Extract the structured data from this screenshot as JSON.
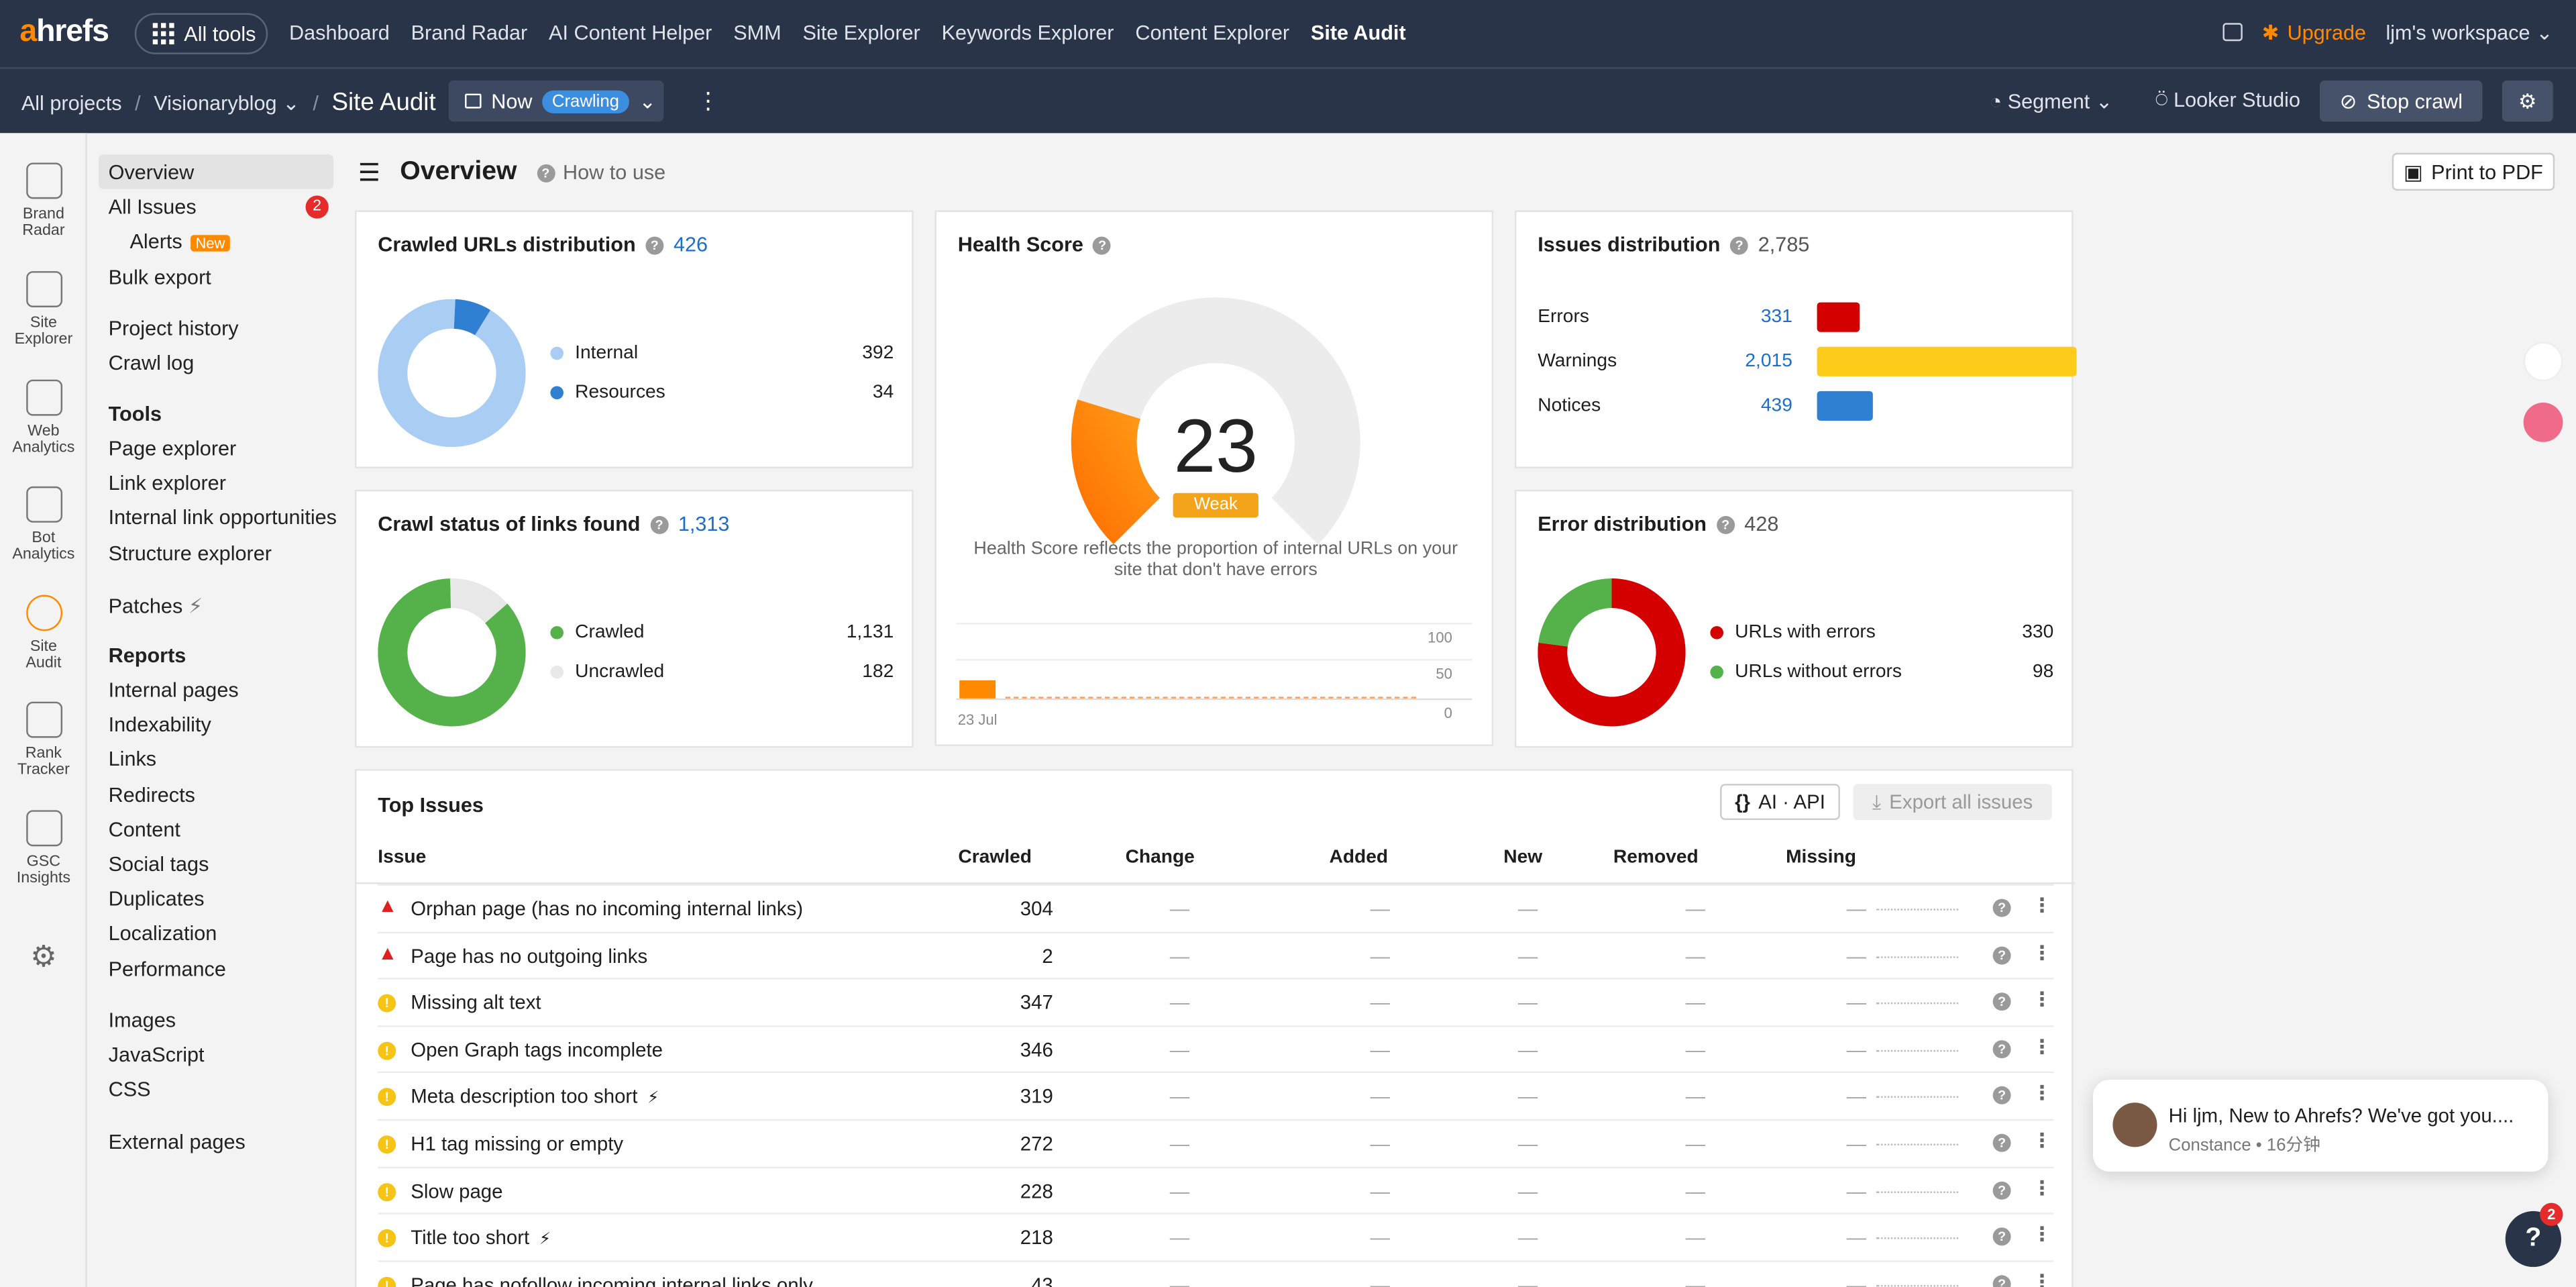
{
  "topnav": {
    "logo_a": "a",
    "logo_rest": "hrefs",
    "all_tools": "All tools",
    "links": [
      "Dashboard",
      "Brand Radar",
      "AI Content Helper",
      "SMM",
      "Site Explorer",
      "Keywords Explorer",
      "Content Explorer",
      "Site Audit"
    ],
    "active": "Site Audit",
    "upgrade": "Upgrade",
    "workspace": "ljm's workspace"
  },
  "subnav": {
    "crumbs": [
      "All projects",
      "Visionaryblog"
    ],
    "current": "Site Audit",
    "now": "Now",
    "crawling": "Crawling",
    "segment": "Segment",
    "looker": "Looker Studio",
    "stop": "Stop crawl"
  },
  "rail": [
    {
      "l1": "Brand",
      "l2": "Radar",
      "icon": "brand-radar-icon"
    },
    {
      "l1": "Site",
      "l2": "Explorer",
      "icon": "site-explorer-icon"
    },
    {
      "l1": "Web",
      "l2": "Analytics",
      "icon": "web-analytics-icon"
    },
    {
      "l1": "Bot",
      "l2": "Analytics",
      "icon": "bot-analytics-icon"
    },
    {
      "l1": "Site",
      "l2": "Audit",
      "icon": "site-audit-icon"
    },
    {
      "l1": "Rank",
      "l2": "Tracker",
      "icon": "rank-tracker-icon"
    },
    {
      "l1": "GSC",
      "l2": "Insights",
      "icon": "gsc-insights-icon"
    }
  ],
  "menu": {
    "overview": "Overview",
    "all_issues": "All Issues",
    "issues_badge": "2",
    "alerts": "Alerts",
    "new": "New",
    "bulk_export": "Bulk export",
    "project_history": "Project history",
    "crawl_log": "Crawl log",
    "tools": "Tools",
    "tools_items": [
      "Page explorer",
      "Link explorer",
      "Internal link opportunities",
      "Structure explorer"
    ],
    "patches": "Patches",
    "reports": "Reports",
    "reports_items": [
      "Internal pages",
      "Indexability",
      "Links",
      "Redirects",
      "Content",
      "Social tags",
      "Duplicates",
      "Localization",
      "Performance"
    ],
    "extra_items": [
      "Images",
      "JavaScript",
      "CSS"
    ],
    "external": "External pages"
  },
  "header": {
    "title": "Overview",
    "how_to": "How to use",
    "print": "Print to PDF"
  },
  "crawled": {
    "title": "Crawled URLs distribution",
    "total": "426",
    "items": [
      {
        "label": "Internal",
        "value": "392",
        "color": "#a9cdf3"
      },
      {
        "label": "Resources",
        "value": "34",
        "color": "#2f7fd3"
      }
    ]
  },
  "health": {
    "title": "Health Score",
    "score": "23",
    "grade": "Weak",
    "caption": "Health Score reflects the proportion of internal URLs on your site that don't have errors",
    "y_ticks": [
      "100",
      "50",
      "0"
    ],
    "date": "23 Jul"
  },
  "issues_dist": {
    "title": "Issues distribution",
    "total": "2,785",
    "rows": [
      {
        "label": "Errors",
        "value": "331",
        "color": "#d40000",
        "fraction": 0.1188
      },
      {
        "label": "Warnings",
        "value": "2,015",
        "color": "#fccc1a",
        "fraction": 0.7235
      },
      {
        "label": "Notices",
        "value": "439",
        "color": "#2f7fd3",
        "fraction": 0.1576
      }
    ]
  },
  "crawl_status": {
    "title": "Crawl status of links found",
    "total": "1,313",
    "items": [
      {
        "label": "Crawled",
        "value": "1,131",
        "color": "#55b24a"
      },
      {
        "label": "Uncrawled",
        "value": "182",
        "color": "#e8e8e8"
      }
    ]
  },
  "error_dist": {
    "title": "Error distribution",
    "total": "428",
    "items": [
      {
        "label": "URLs with errors",
        "value": "330",
        "color": "#d40000"
      },
      {
        "label": "URLs without errors",
        "value": "98",
        "color": "#55b24a"
      }
    ]
  },
  "top_issues": {
    "title": "Top Issues",
    "ai_api": "AI · API",
    "export": "Export all issues",
    "columns": [
      "Issue",
      "Crawled",
      "Change",
      "Added",
      "New",
      "Removed",
      "Missing"
    ],
    "dash": "—",
    "rows": [
      {
        "name": "Orphan page (has no incoming internal links)",
        "crawled": "304",
        "type": "error"
      },
      {
        "name": "Page has no outgoing links",
        "crawled": "2",
        "type": "error"
      },
      {
        "name": "Missing alt text",
        "crawled": "347",
        "type": "warning"
      },
      {
        "name": "Open Graph tags incomplete",
        "crawled": "346",
        "type": "warning"
      },
      {
        "name": "Meta description too short",
        "crawled": "319",
        "type": "warning",
        "patch": true
      },
      {
        "name": "H1 tag missing or empty",
        "crawled": "272",
        "type": "warning"
      },
      {
        "name": "Slow page",
        "crawled": "228",
        "type": "warning"
      },
      {
        "name": "Title too short",
        "crawled": "218",
        "type": "warning",
        "patch": true
      },
      {
        "name": "Page has nofollow incoming internal links only",
        "crawled": "43",
        "type": "warning"
      }
    ]
  },
  "chat": {
    "message": "Hi ljm,  New to Ahrefs? We've got you....",
    "from": "Constance • 16分钟"
  },
  "help": {
    "label": "?",
    "badge": "2"
  }
}
